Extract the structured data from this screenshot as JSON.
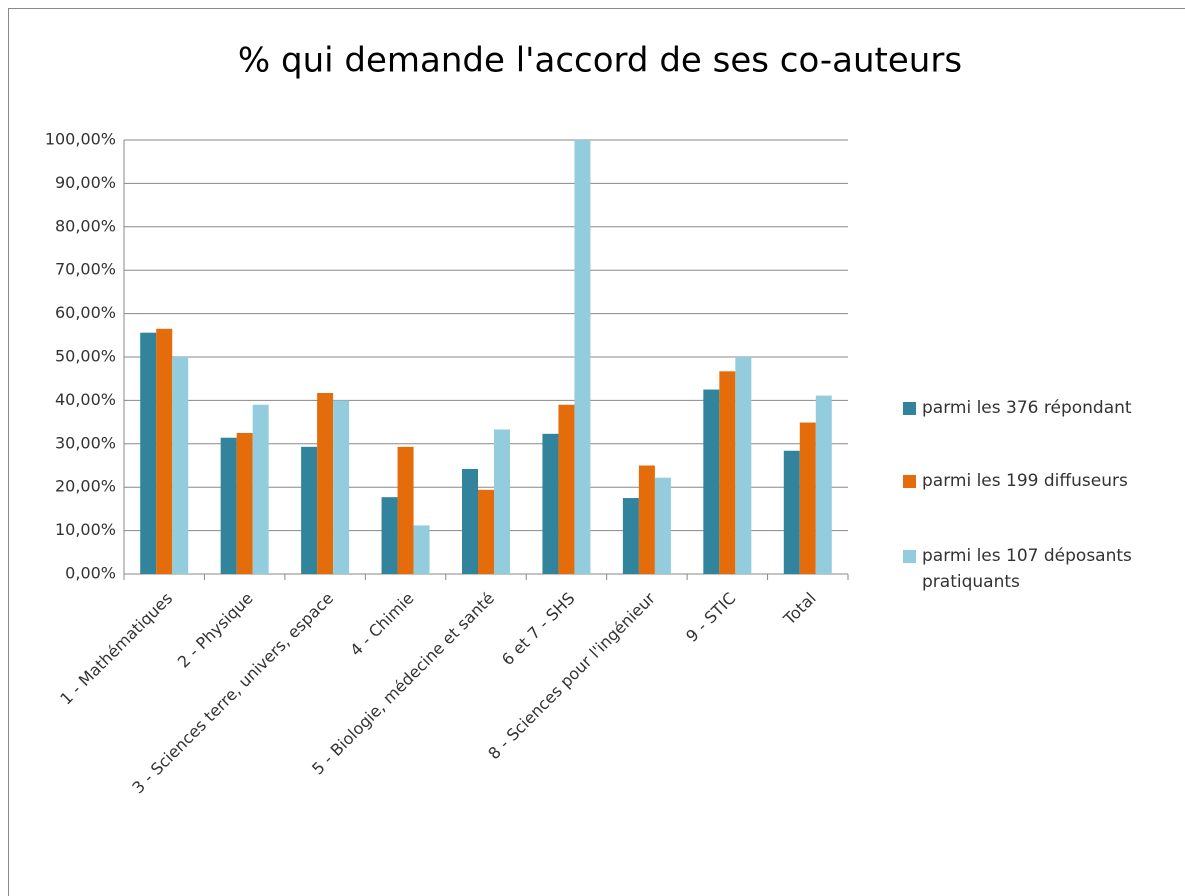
{
  "chart_data": {
    "type": "bar",
    "title": "% qui demande l'accord de ses co-auteurs",
    "categories": [
      "1 - Mathématiques",
      "2 - Physique",
      "3 - Sciences terre, univers, espace",
      "4 - Chimie",
      "5 - Biologie, médecine et santé",
      "6 et 7 - SHS",
      "8 - Sciences pour l'ingénieur",
      "9 - STIC",
      "Total"
    ],
    "series": [
      {
        "name": "parmi les 376 répondant",
        "color": "#31849b",
        "values": [
          55.6,
          31.4,
          29.3,
          17.7,
          24.2,
          32.3,
          17.5,
          42.5,
          28.4
        ]
      },
      {
        "name": "parmi les 199 diffuseurs",
        "color": "#e46c0a",
        "values": [
          56.5,
          32.5,
          41.7,
          29.3,
          19.4,
          39,
          25,
          46.7,
          34.9
        ]
      },
      {
        "name": "parmi les 107 déposants pratiquants",
        "color": "#93cddd",
        "values": [
          50,
          39,
          40,
          11.2,
          33.3,
          100,
          22.2,
          50,
          41.1
        ]
      }
    ],
    "ylim": [
      0,
      100
    ],
    "yticks": [
      {
        "value": 0,
        "label": "0,00%"
      },
      {
        "value": 10,
        "label": "10,00%"
      },
      {
        "value": 20,
        "label": "20,00%"
      },
      {
        "value": 30,
        "label": "30,00%"
      },
      {
        "value": 40,
        "label": "40,00%"
      },
      {
        "value": 50,
        "label": "50,00%"
      },
      {
        "value": 60,
        "label": "60,00%"
      },
      {
        "value": 70,
        "label": "70,00%"
      },
      {
        "value": 80,
        "label": "80,00%"
      },
      {
        "value": 90,
        "label": "90,00%"
      },
      {
        "value": 100,
        "label": "100,00%"
      }
    ],
    "grid": true,
    "legend": "right"
  }
}
